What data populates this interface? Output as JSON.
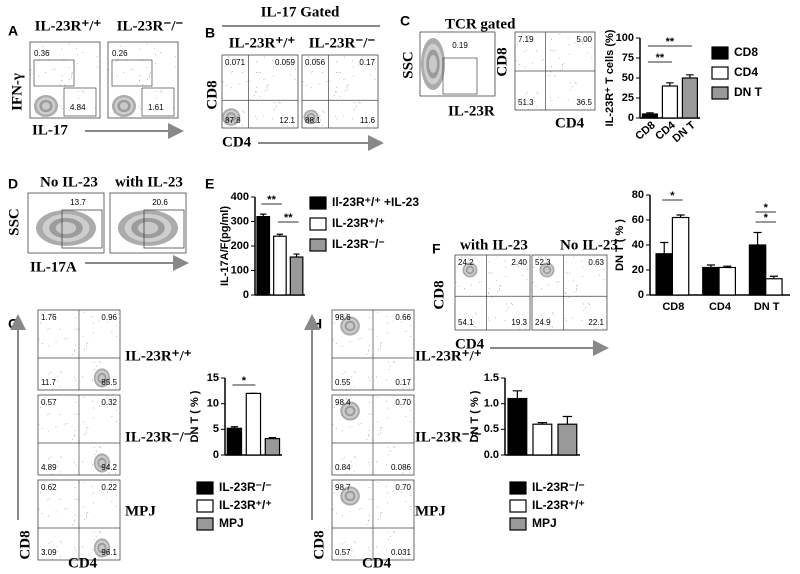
{
  "panels": {
    "A": {
      "letter": "A",
      "headers": [
        "IL-23R⁺/⁺",
        "IL-23R⁻/⁻"
      ],
      "y_label": "IFN-γ",
      "x_label": "IL-17",
      "plots": [
        [
          "0.36",
          "4.84"
        ],
        [
          "0.26",
          "1.61"
        ]
      ]
    },
    "B": {
      "letter": "B",
      "title": "IL-17 Gated",
      "headers": [
        "IL-23R⁺/⁺",
        "IL-23R⁻/⁻"
      ],
      "y_label": "CD8",
      "x_label": "CD4",
      "plots": [
        [
          "0.071",
          "0.059",
          "87.8",
          "12.1"
        ],
        [
          "0.056",
          "0.17",
          "88.1",
          "11.6"
        ]
      ]
    },
    "C": {
      "letter": "C",
      "title": "TCR gated",
      "gate_y_label": "SSC",
      "gate_x_label": "IL-23R",
      "gate_value": "0.19",
      "y_label": "CD8",
      "x_label": "CD4",
      "plot": [
        "7.19",
        "5.00",
        "51.3",
        "36.5"
      ]
    },
    "D": {
      "letter": "D",
      "headers": [
        "No IL-23",
        "with IL-23"
      ],
      "y_label": "SSC",
      "x_label": "IL-17A",
      "plots": [
        "13.7",
        "20.6"
      ]
    },
    "E": {
      "letter": "E"
    },
    "F": {
      "letter": "F",
      "headers": [
        "with IL-23",
        "No IL-23"
      ],
      "y_label": "CD8",
      "x_label": "CD4",
      "plots": [
        [
          "24.2",
          "2.40",
          "54.1",
          "19.3"
        ],
        [
          "52.3",
          "0.63",
          "24.9",
          "22.1"
        ]
      ]
    },
    "G": {
      "letter": "G",
      "row_labels": [
        "IL-23R⁺/⁺",
        "IL-23R⁻/⁻",
        "MPJ"
      ],
      "y_label": "CD8",
      "x_label": "CD4",
      "plots": [
        [
          "1.76",
          "0.96",
          "11.7",
          "85.5"
        ],
        [
          "0.57",
          "0.32",
          "4.89",
          "94.2"
        ],
        [
          "0.62",
          "0.22",
          "3.09",
          "96.1"
        ]
      ]
    },
    "H": {
      "letter": "H",
      "row_labels": [
        "IL-23R⁺/⁺",
        "IL-23R⁻/⁻",
        "MPJ"
      ],
      "y_label": "CD8",
      "x_label": "CD4",
      "plots": [
        [
          "98.6",
          "0.66",
          "0.55",
          "0.17"
        ],
        [
          "98.4",
          "0.70",
          "0.84",
          "0.086"
        ],
        [
          "98.7",
          "0.70",
          "0.57",
          "0.031"
        ]
      ]
    }
  },
  "chart_data": [
    {
      "type": "bar",
      "y_label": "IL-23R⁺ T cells (%)",
      "categories": [
        "CD8",
        "CD4",
        "DN T"
      ],
      "values": [
        5,
        40,
        50
      ],
      "errors": [
        1.5,
        4,
        4
      ],
      "colors": [
        "#000000",
        "#ffffff",
        "#999999"
      ],
      "legend": [
        "CD8",
        "CD4",
        "DN T"
      ],
      "ylim": [
        0,
        100
      ],
      "yticks": [
        0,
        25,
        50,
        75,
        100
      ],
      "annotations": [
        "**",
        "**"
      ]
    },
    {
      "type": "bar",
      "y_label": "IL-17A/F(pg/ml)",
      "values": [
        320,
        240,
        155
      ],
      "errors": [
        10,
        8,
        12
      ],
      "colors": [
        "#000000",
        "#ffffff",
        "#999999"
      ],
      "legend": [
        "Il-23R⁺/⁺ +IL-23",
        "IL-23R⁺/⁺",
        "IL-23R⁻/⁻"
      ],
      "ylim": [
        0,
        400
      ],
      "yticks": [
        0,
        100,
        200,
        300,
        400
      ],
      "annotations": [
        "**",
        "**"
      ]
    },
    {
      "type": "bar",
      "y_label": "DN T ( % )",
      "categories": [
        "CD8",
        "CD4",
        "DN T"
      ],
      "series": [
        {
          "color": "#000000",
          "values": [
            33,
            22,
            40
          ],
          "errors": [
            9,
            2,
            10
          ]
        },
        {
          "color": "#ffffff",
          "values": [
            62,
            22,
            13
          ],
          "errors": [
            2,
            1,
            2
          ]
        }
      ],
      "ylim": [
        0,
        80
      ],
      "yticks": [
        0,
        20,
        40,
        60,
        80
      ],
      "annotations": [
        "*",
        "*",
        "*"
      ]
    },
    {
      "type": "bar",
      "y_label": "DN T ( % )",
      "values": [
        5.2,
        12,
        3.2
      ],
      "errors": [
        0.3,
        0,
        0.2
      ],
      "colors": [
        "#000000",
        "#ffffff",
        "#999999"
      ],
      "legend": [
        "IL-23R⁻/⁻",
        "IL-23R⁺/⁺",
        "MPJ"
      ],
      "ylim": [
        0,
        15
      ],
      "yticks": [
        0,
        5,
        10,
        15
      ],
      "annotations": [
        "*"
      ]
    },
    {
      "type": "bar",
      "y_label": "DN T ( % )",
      "values": [
        1.1,
        0.6,
        0.6
      ],
      "errors": [
        0.15,
        0.03,
        0.15
      ],
      "colors": [
        "#000000",
        "#ffffff",
        "#999999"
      ],
      "legend": [
        "IL-23R⁻/⁻",
        "IL-23R⁺/⁺",
        "MPJ"
      ],
      "ylim": [
        0,
        1.5
      ],
      "yticks": [
        {
          "value": 0,
          "label": "0.0"
        },
        0.5,
        {
          "value": 1,
          "label": "1.0"
        },
        1.5
      ],
      "annotations": []
    }
  ]
}
